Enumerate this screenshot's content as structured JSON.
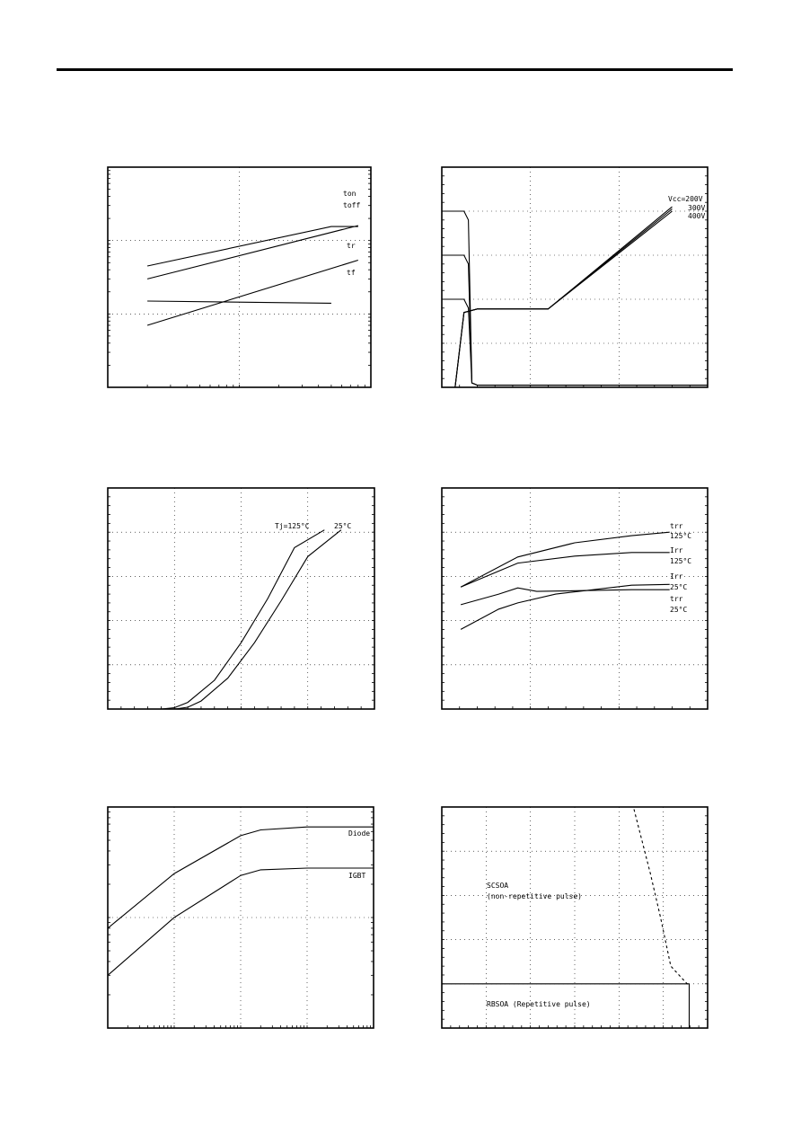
{
  "colors": {
    "ink": "#000000",
    "paper": "#ffffff"
  },
  "chart_data": [
    {
      "id": "p1",
      "type": "line",
      "xscale": "log",
      "yscale": "log",
      "xlim": [
        1,
        100
      ],
      "ylim": [
        0.01,
        10
      ],
      "grid": true,
      "series": [
        {
          "name": "ton",
          "x": [
            2,
            50,
            80
          ],
          "y": [
            0.45,
            1.55,
            1.55
          ]
        },
        {
          "name": "toff",
          "x": [
            2,
            80
          ],
          "y": [
            0.3,
            1.6
          ]
        },
        {
          "name": "tr",
          "x": [
            2,
            80
          ],
          "y": [
            0.07,
            0.54
          ]
        },
        {
          "name": "tf",
          "x": [
            2,
            50
          ],
          "y": [
            0.15,
            0.14
          ]
        }
      ]
    },
    {
      "id": "p2",
      "type": "line",
      "xlim": [
        0,
        300
      ],
      "ylim": [
        0,
        500
      ],
      "grid": true,
      "series": [
        {
          "name": "Vcc=200V",
          "x": [
            0,
            15,
            25,
            40,
            120,
            260
          ],
          "y": [
            0,
            0,
            170,
            178,
            178,
            400
          ]
        },
        {
          "name": "300V",
          "x": [
            0,
            15,
            25,
            40,
            120,
            260
          ],
          "y": [
            0,
            0,
            170,
            178,
            178,
            405
          ]
        },
        {
          "name": "400V",
          "x": [
            0,
            15,
            25,
            40,
            120,
            260
          ],
          "y": [
            0,
            0,
            170,
            178,
            178,
            410
          ]
        },
        {
          "name": "",
          "x": [
            0,
            25,
            30,
            34,
            40,
            300
          ],
          "y": [
            400,
            400,
            380,
            10,
            5,
            5
          ]
        },
        {
          "name": "",
          "x": [
            0,
            25,
            30,
            34,
            40,
            300
          ],
          "y": [
            300,
            300,
            280,
            10,
            5,
            5
          ]
        },
        {
          "name": "",
          "x": [
            0,
            25,
            30,
            34,
            40,
            300
          ],
          "y": [
            200,
            200,
            180,
            10,
            5,
            5
          ]
        }
      ]
    },
    {
      "id": "p3",
      "type": "line",
      "xlim": [
        0,
        4
      ],
      "ylim": [
        0,
        500
      ],
      "grid": true,
      "series": [
        {
          "name": "Tj=125°C",
          "x": [
            0.8,
            1.0,
            1.2,
            1.6,
            2.0,
            2.4,
            2.8,
            3.25
          ],
          "y": [
            0,
            3,
            15,
            65,
            150,
            250,
            365,
            405
          ]
        },
        {
          "name": "25°C",
          "x": [
            1.0,
            1.2,
            1.4,
            1.8,
            2.2,
            2.6,
            3.0,
            3.5
          ],
          "y": [
            0,
            4,
            18,
            70,
            150,
            245,
            345,
            405
          ]
        }
      ]
    },
    {
      "id": "p4",
      "type": "line",
      "xlim": [
        0,
        350
      ],
      "ylim": [
        0,
        250
      ],
      "grid": true,
      "series": [
        {
          "name": "trr 125°C",
          "x": [
            25,
            100,
            175,
            250,
            300
          ],
          "y": [
            138,
            172,
            188,
            196,
            200
          ]
        },
        {
          "name": "Irr 125°C",
          "x": [
            25,
            100,
            175,
            250,
            300
          ],
          "y": [
            138,
            165,
            173,
            177,
            177
          ]
        },
        {
          "name": "Irr 25°C",
          "x": [
            25,
            75,
            100,
            125,
            250,
            300
          ],
          "y": [
            118,
            130,
            137,
            133,
            135,
            135
          ]
        },
        {
          "name": "trr 25°C",
          "x": [
            25,
            75,
            100,
            150,
            250,
            300
          ],
          "y": [
            90,
            113,
            120,
            130,
            140,
            141
          ]
        }
      ]
    },
    {
      "id": "p5",
      "type": "line",
      "xscale": "log",
      "yscale": "log",
      "xlim": [
        0.0001,
        1
      ],
      "ylim": [
        0.01,
        1
      ],
      "grid": true,
      "series": [
        {
          "name": "Diode",
          "x": [
            0.0001,
            0.001,
            0.01,
            0.02,
            0.1,
            1
          ],
          "y": [
            0.08,
            0.25,
            0.55,
            0.62,
            0.66,
            0.66
          ]
        },
        {
          "name": "IGBT",
          "x": [
            0.0001,
            0.001,
            0.01,
            0.02,
            0.1,
            1
          ],
          "y": [
            0.03,
            0.1,
            0.24,
            0.27,
            0.28,
            0.28
          ]
        }
      ]
    },
    {
      "id": "p6",
      "type": "line",
      "xlim": [
        0,
        650
      ],
      "ylim": [
        0,
        1000
      ],
      "grid": true,
      "series": [
        {
          "name": "SCSOA (non-repetitive pulse)",
          "x": [
            470,
            510,
            535,
            560,
            600,
            605
          ],
          "y": [
            990,
            700,
            500,
            280,
            200,
            200
          ],
          "dashed": true
        },
        {
          "name": "RBSOA (Repetitive pulse)",
          "x": [
            0,
            600,
            605,
            605
          ],
          "y": [
            200,
            200,
            200,
            0
          ]
        }
      ],
      "annotations": [
        "SCSOA",
        "(non-repetitive pulse)",
        "RBSOA (Repetitive pulse)"
      ]
    }
  ],
  "labels": {
    "p1": {
      "ton": "ton",
      "toff": "toff",
      "tr": "tr",
      "tf": "tf"
    },
    "p2": {
      "v200": "Vcc=200V",
      "v300": "300V",
      "v400": "400V"
    },
    "p3": {
      "t125": "Tj=125°C",
      "t25": "25°C"
    },
    "p4": {
      "trr125a": "trr",
      "trr125b": "125°C",
      "irr125a": "Irr",
      "irr125b": "125°C",
      "irr25a": "Irr",
      "irr25b": "25°C",
      "trr25a": "trr",
      "trr25b": "25°C"
    },
    "p5": {
      "diode": "Diode",
      "igbt": "IGBT"
    },
    "p6": {
      "scsoa": "SCSOA",
      "scsoa_note": "(non-repetitive pulse)",
      "rbsoa": "RBSOA (Repetitive pulse)"
    }
  }
}
